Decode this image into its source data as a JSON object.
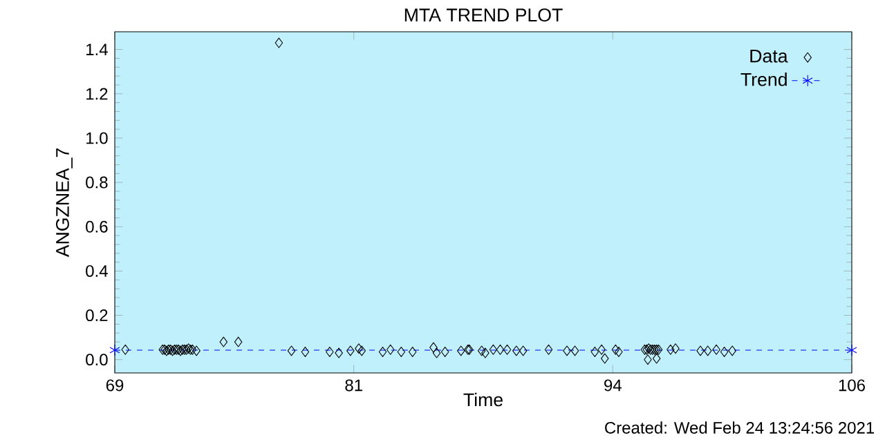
{
  "chart_data": {
    "type": "scatter",
    "title": "MTA TREND PLOT",
    "xlabel": "Time",
    "ylabel": "ANGZNEA_7",
    "annotations": [
      "Created: Wed Feb 24 13:24:56 2021"
    ],
    "xlim": [
      69,
      106
    ],
    "xticks": [
      69,
      81,
      94,
      106
    ],
    "ylim": [
      -0.06,
      1.48
    ],
    "yticks": [
      {
        "value": 0,
        "label": "0.0"
      },
      0.2,
      0.4,
      0.6,
      0.8,
      {
        "value": 1,
        "label": "1.0"
      },
      1.2,
      1.4
    ],
    "legend": "top right",
    "grid": false,
    "series": [
      {
        "name": "Data",
        "marker": "diamond",
        "color": "#000000",
        "x": [
          69.53,
          71.4,
          71.5,
          71.6,
          71.7,
          71.8,
          71.9,
          72.0,
          72.1,
          72.2,
          72.3,
          72.4,
          72.5,
          72.6,
          72.7,
          72.8,
          72.9,
          73.1,
          74.46,
          75.2,
          77.24,
          77.87,
          78.56,
          79.79,
          80.25,
          80.83,
          81.25,
          81.4,
          82.45,
          82.84,
          83.38,
          83.95,
          85.0,
          85.16,
          85.58,
          86.38,
          86.73,
          86.8,
          87.42,
          87.6,
          88.0,
          88.35,
          88.7,
          89.16,
          89.5,
          90.78,
          91.7,
          92.1,
          93.1,
          93.44,
          93.6,
          94.14,
          94.3,
          95.6,
          95.7,
          95.76,
          95.8,
          95.9,
          96.0,
          96.1,
          96.2,
          96.2,
          96.3,
          96.9,
          97.15,
          98.4,
          98.77,
          99.2,
          99.6,
          100.0
        ],
        "values": [
          0.045,
          0.045,
          0.045,
          0.04,
          0.045,
          0.045,
          0.04,
          0.045,
          0.045,
          0.045,
          0.04,
          0.045,
          0.045,
          0.045,
          0.05,
          0.045,
          0.045,
          0.04,
          0.08,
          0.08,
          1.43,
          0.04,
          0.035,
          0.035,
          0.03,
          0.04,
          0.05,
          0.04,
          0.035,
          0.045,
          0.035,
          0.035,
          0.055,
          0.03,
          0.035,
          0.04,
          0.045,
          0.045,
          0.04,
          0.03,
          0.045,
          0.045,
          0.045,
          0.04,
          0.04,
          0.045,
          0.04,
          0.04,
          0.035,
          0.045,
          0.005,
          0.045,
          0.035,
          0.045,
          0.045,
          0.0,
          0.05,
          0.045,
          0.045,
          0.045,
          0.005,
          0.045,
          0.045,
          0.045,
          0.05,
          0.04,
          0.04,
          0.045,
          0.035,
          0.04
        ]
      },
      {
        "name": "Trend",
        "type": "line",
        "marker": "cross",
        "line_style": "dashed",
        "color": "#0000ff",
        "x": [
          69,
          106
        ],
        "values": [
          0.043,
          0.043
        ]
      }
    ]
  }
}
